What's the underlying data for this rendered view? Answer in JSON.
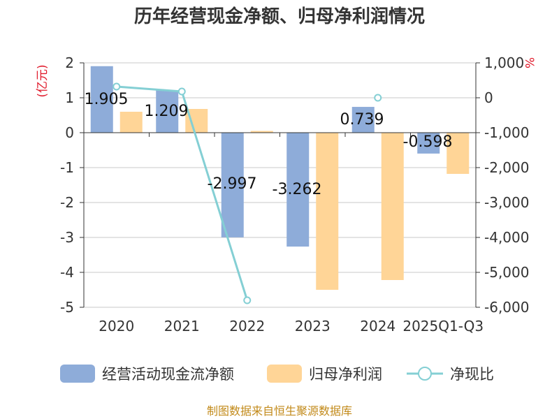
{
  "chart_data": {
    "type": "bar",
    "title": "历年经营现金净额、归母净利润情况",
    "categories": [
      "2020",
      "2021",
      "2022",
      "2023",
      "2024",
      "2025Q1-Q3"
    ],
    "series": [
      {
        "name": "经营活动现金流净额",
        "type": "bar",
        "axis": "left",
        "color": "#8eacd9",
        "values": [
          1.905,
          1.209,
          -2.997,
          -3.262,
          0.739,
          -0.598
        ],
        "labels": [
          "1.905",
          "1.209",
          "-2.997",
          "-3.262",
          "0.739",
          "-0.598"
        ]
      },
      {
        "name": "归母净利润",
        "type": "bar",
        "axis": "left",
        "color": "#ffd597",
        "values": [
          0.6,
          0.68,
          0.05,
          -4.5,
          -4.22,
          -1.18
        ]
      },
      {
        "name": "净现比",
        "type": "line",
        "axis": "right",
        "color": "#84cfd4",
        "values": [
          320,
          180,
          -5800,
          null,
          0,
          null
        ]
      }
    ],
    "left_axis": {
      "unit": "(亿元)",
      "min": -5,
      "max": 2,
      "ticks": [
        "2",
        "1",
        "0",
        "-1",
        "-2",
        "-3",
        "-4",
        "-5"
      ]
    },
    "right_axis": {
      "unit": "%",
      "min": -6000,
      "max": 1000,
      "ticks": [
        "1,000",
        "0",
        "-1,000",
        "-2,000",
        "-3,000",
        "-4,000",
        "-5,000",
        "-6,000"
      ]
    },
    "grid": true,
    "legend_position": "bottom",
    "source": "制图数据来自恒生聚源数据库"
  }
}
